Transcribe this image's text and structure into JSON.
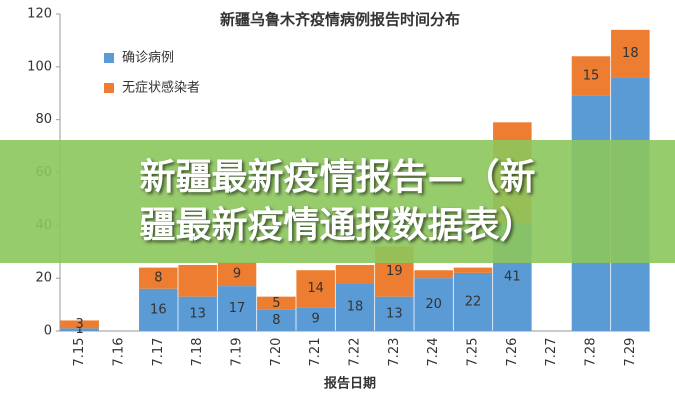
{
  "chart_data": {
    "type": "stacked-bar",
    "title": "新疆乌鲁木齐疫情病例报告时间分布",
    "x_label": "报告日期",
    "categories": [
      "7.15",
      "7.16",
      "7.17",
      "7.18",
      "7.19",
      "7.20",
      "7.21",
      "7.22",
      "7.23",
      "7.24",
      "7.25",
      "7.26",
      "7.27",
      "7.28",
      "7.29"
    ],
    "series": [
      {
        "name": "确诊病例",
        "color": "#5b9bd5",
        "values": [
          1,
          null,
          16,
          13,
          17,
          8,
          9,
          18,
          13,
          20,
          22,
          41,
          null,
          89,
          96
        ],
        "value_labels": [
          "1",
          null,
          "16",
          "13",
          "17",
          "8",
          "9",
          "18",
          "13",
          "20",
          "22",
          "41",
          null,
          null,
          null
        ]
      },
      {
        "name": "无症状感染者",
        "color": "#ed7d31",
        "values": [
          3,
          null,
          8,
          12,
          9,
          5,
          14,
          7,
          19,
          3,
          2,
          38,
          null,
          15,
          18
        ],
        "value_labels": [
          "3",
          null,
          "8",
          null,
          "9",
          "5",
          "14",
          null,
          "19",
          null,
          null,
          null,
          null,
          "15",
          "18"
        ]
      }
    ],
    "ylim": [
      0,
      120
    ],
    "yticks": [
      0,
      20,
      40,
      60,
      80,
      100,
      120
    ],
    "grid": false
  },
  "banner": {
    "lines": [
      "新疆最新疫情报告—（新",
      "疆最新疫情通报数据表）"
    ]
  }
}
